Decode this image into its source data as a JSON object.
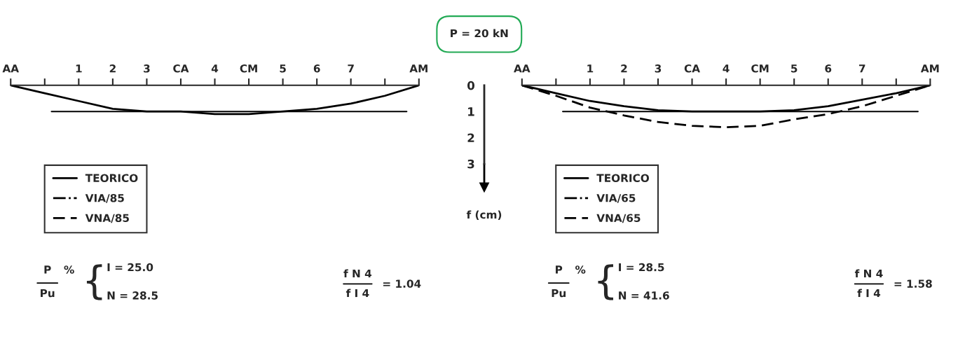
{
  "chart_data": [
    {
      "type": "line",
      "title": "P = 20 kN",
      "categories": [
        "AA",
        null,
        "1",
        "2",
        "3",
        "CA",
        "4",
        "CM",
        "5",
        "6",
        "7",
        null,
        "AM"
      ],
      "ylim": [
        3,
        0
      ],
      "yticks": [
        0,
        1,
        2,
        3
      ],
      "ylabel": "f (cm)",
      "series": [
        {
          "name": "TEORICO",
          "color": "#000000",
          "line_style": "solid",
          "values": [
            0,
            0.3,
            0.6,
            0.9,
            1.0,
            1.0,
            1.1,
            1.1,
            1.0,
            0.9,
            0.7,
            0.4,
            0
          ]
        },
        {
          "name": "VIA/85",
          "color": "#000000",
          "line_style": "dashdot",
          "values": [
            null,
            null,
            null,
            null,
            null,
            null,
            null,
            null,
            null,
            null,
            null,
            null,
            null
          ]
        },
        {
          "name": "VNA/85",
          "color": "#000000",
          "line_style": "dashed",
          "values": [
            null,
            null,
            null,
            null,
            null,
            null,
            null,
            null,
            null,
            null,
            null,
            null,
            null
          ]
        }
      ],
      "ref_lines": [
        {
          "axis": "y",
          "value": 1,
          "label": null,
          "color": "#000000"
        }
      ],
      "legend": "bottom left",
      "marker": "none",
      "grid": false,
      "annotations": [
        "P",
        "Pu",
        "%",
        "{",
        "I = 25.0",
        "N = 28.5",
        "f N 4",
        "f I 4",
        "= 1.04"
      ]
    },
    {
      "type": "line",
      "categories": [
        "AA",
        null,
        "1",
        "2",
        "3",
        "CA",
        "4",
        "CM",
        "5",
        "6",
        "7",
        null,
        "AM"
      ],
      "ylim": [
        3,
        0
      ],
      "yticks": [
        0,
        1,
        2,
        3
      ],
      "tick_labels": "x",
      "series": [
        {
          "name": "TEORICO",
          "color": "#000000",
          "line_style": "solid",
          "values": [
            0,
            0.3,
            0.6,
            0.8,
            0.95,
            1.0,
            1.0,
            1.0,
            0.95,
            0.8,
            0.55,
            0.3,
            0
          ]
        },
        {
          "name": "VIA/65",
          "color": "#000000",
          "line_style": "dashdot",
          "values": [
            null,
            null,
            null,
            null,
            null,
            null,
            null,
            null,
            null,
            null,
            null,
            null,
            null
          ]
        },
        {
          "name": "VNA/65",
          "color": "#000000",
          "line_style": "dashed",
          "values": [
            0,
            0.4,
            0.85,
            1.15,
            1.4,
            1.55,
            1.6,
            1.55,
            1.3,
            1.1,
            0.8,
            0.4,
            0
          ]
        }
      ],
      "ref_lines": [
        {
          "axis": "y",
          "value": 1,
          "label": null,
          "color": "#000000"
        }
      ],
      "legend": "bottom left",
      "marker": "none",
      "grid": false,
      "annotations": [
        "P",
        "Pu",
        "%",
        "{",
        "I = 28.5",
        "N = 41.6",
        "f N 4",
        "f I 4",
        "= 1.58"
      ]
    }
  ]
}
